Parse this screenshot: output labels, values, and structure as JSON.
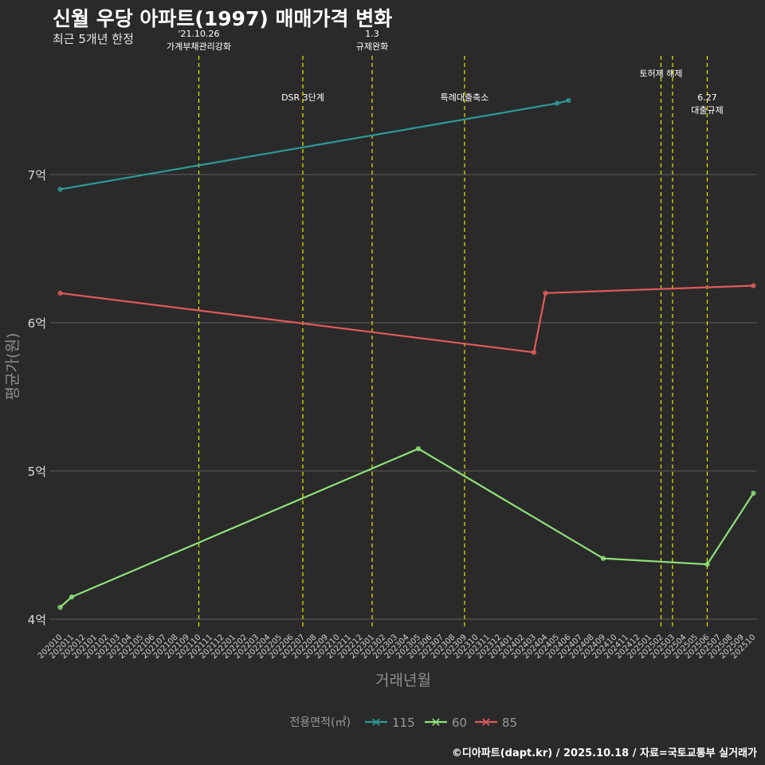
{
  "header": {
    "title": "신월 우당 아파트(1997) 매매가격 변화",
    "subtitle": "최근 5개년 한정"
  },
  "footer": {
    "caption": "©디아파트(dapt.kr) / 2025.10.18 / 자료=국토교통부 실거래가"
  },
  "chart_data": {
    "type": "line",
    "title": "신월 우당 아파트(1997) 매매가격 변화",
    "subtitle": "최근 5개년 한정",
    "xlabel": "거래년월",
    "ylabel": "평균가(원)",
    "ylim": [
      3.95,
      7.85
    ],
    "y_ticks": [
      {
        "value": 4,
        "label": "4억"
      },
      {
        "value": 5,
        "label": "5억"
      },
      {
        "value": 6,
        "label": "6억"
      },
      {
        "value": 7,
        "label": "7억"
      }
    ],
    "x_categories": [
      "202010",
      "202011",
      "202012",
      "202101",
      "202102",
      "202103",
      "202104",
      "202105",
      "202106",
      "202107",
      "202108",
      "202109",
      "202110",
      "202111",
      "202112",
      "202201",
      "202202",
      "202203",
      "202204",
      "202205",
      "202206",
      "202207",
      "202208",
      "202209",
      "202210",
      "202211",
      "202212",
      "202301",
      "202302",
      "202303",
      "202304",
      "202305",
      "202306",
      "202307",
      "202308",
      "202309",
      "202310",
      "202311",
      "202312",
      "202401",
      "202402",
      "202403",
      "202404",
      "202405",
      "202406",
      "202407",
      "202408",
      "202409",
      "202410",
      "202411",
      "202412",
      "202501",
      "202502",
      "202503",
      "202504",
      "202505",
      "202506",
      "202507",
      "202508",
      "202509",
      "202510"
    ],
    "legend": {
      "title": "전용면적(㎡)",
      "position": "bottom",
      "marker": "✕"
    },
    "series": [
      {
        "name": "115",
        "color": "#2e9a96",
        "points": [
          {
            "x": "202010",
            "y": 6.9
          },
          {
            "x": "202405",
            "y": 7.48
          },
          {
            "x": "202406",
            "y": 7.5
          }
        ]
      },
      {
        "name": "60",
        "color": "#8fe07a",
        "points": [
          {
            "x": "202010",
            "y": 4.08
          },
          {
            "x": "202011",
            "y": 4.15
          },
          {
            "x": "202305",
            "y": 5.15
          },
          {
            "x": "202409",
            "y": 4.41
          },
          {
            "x": "202506",
            "y": 4.37
          },
          {
            "x": "202510",
            "y": 4.85
          }
        ]
      },
      {
        "name": "85",
        "color": "#e05a5a",
        "points": [
          {
            "x": "202010",
            "y": 6.2
          },
          {
            "x": "202403",
            "y": 5.8
          },
          {
            "x": "202404",
            "y": 6.2
          },
          {
            "x": "202510",
            "y": 6.25
          }
        ]
      }
    ],
    "events": [
      {
        "x": "202110",
        "lines": [
          "'21.10.26",
          "가계부채관리강화"
        ],
        "label_y": 7.93
      },
      {
        "x": "202207",
        "lines": [
          "DSR 3단계"
        ],
        "label_y": 7.5
      },
      {
        "x": "202301",
        "lines": [
          "1.3",
          "규제완화"
        ],
        "label_y": 7.93
      },
      {
        "x": "202309",
        "lines": [
          "특례대출축소"
        ],
        "label_y": 7.5
      },
      {
        "x": "202502",
        "lines": [
          "토허제 해제"
        ],
        "label_y": 7.66
      },
      {
        "x": "202503",
        "lines": [],
        "label_y": 7.66
      },
      {
        "x": "202506",
        "lines": [
          "6.27",
          "대출규제"
        ],
        "label_y": 7.5
      }
    ]
  }
}
